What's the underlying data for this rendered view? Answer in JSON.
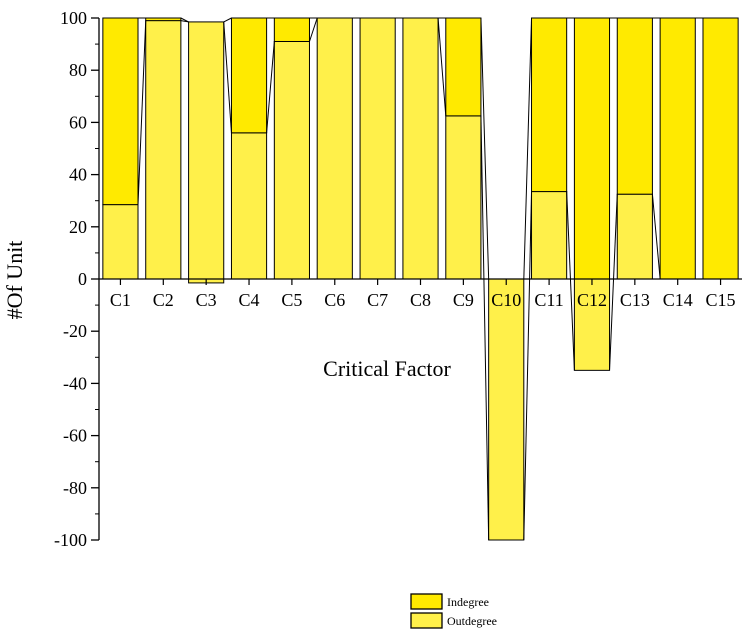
{
  "chart_data": {
    "type": "bar",
    "stacked": true,
    "categories": [
      "C1",
      "C2",
      "C3",
      "C4",
      "C5",
      "C6",
      "C7",
      "C8",
      "C9",
      "C10",
      "C11",
      "C12",
      "C13",
      "C14",
      "C15"
    ],
    "series": [
      {
        "name": "Indegree",
        "color": "#FFEA00",
        "values": [
          71.5,
          1,
          0,
          44,
          9,
          0,
          0,
          0,
          37.5,
          0,
          66.5,
          100,
          67.5,
          100,
          100
        ]
      },
      {
        "name": "Outdegree",
        "color": "#FFF04A",
        "values": [
          28.5,
          99,
          98.5,
          56,
          91,
          100,
          100,
          100,
          62.5,
          -100,
          33.5,
          -35,
          32.5,
          0,
          0
        ]
      }
    ],
    "negative_stubs": {
      "C3": -1.5
    },
    "xlabel": "Critical Factor",
    "ylabel": "#Of Unit",
    "ylim": [
      -100,
      100
    ],
    "yticks": [
      -100,
      -80,
      -60,
      -40,
      -20,
      0,
      20,
      40,
      60,
      80,
      100
    ],
    "grid": false,
    "legend": {
      "position": "bottom-center",
      "entries": [
        "Indegree",
        "Outdegree"
      ]
    }
  }
}
